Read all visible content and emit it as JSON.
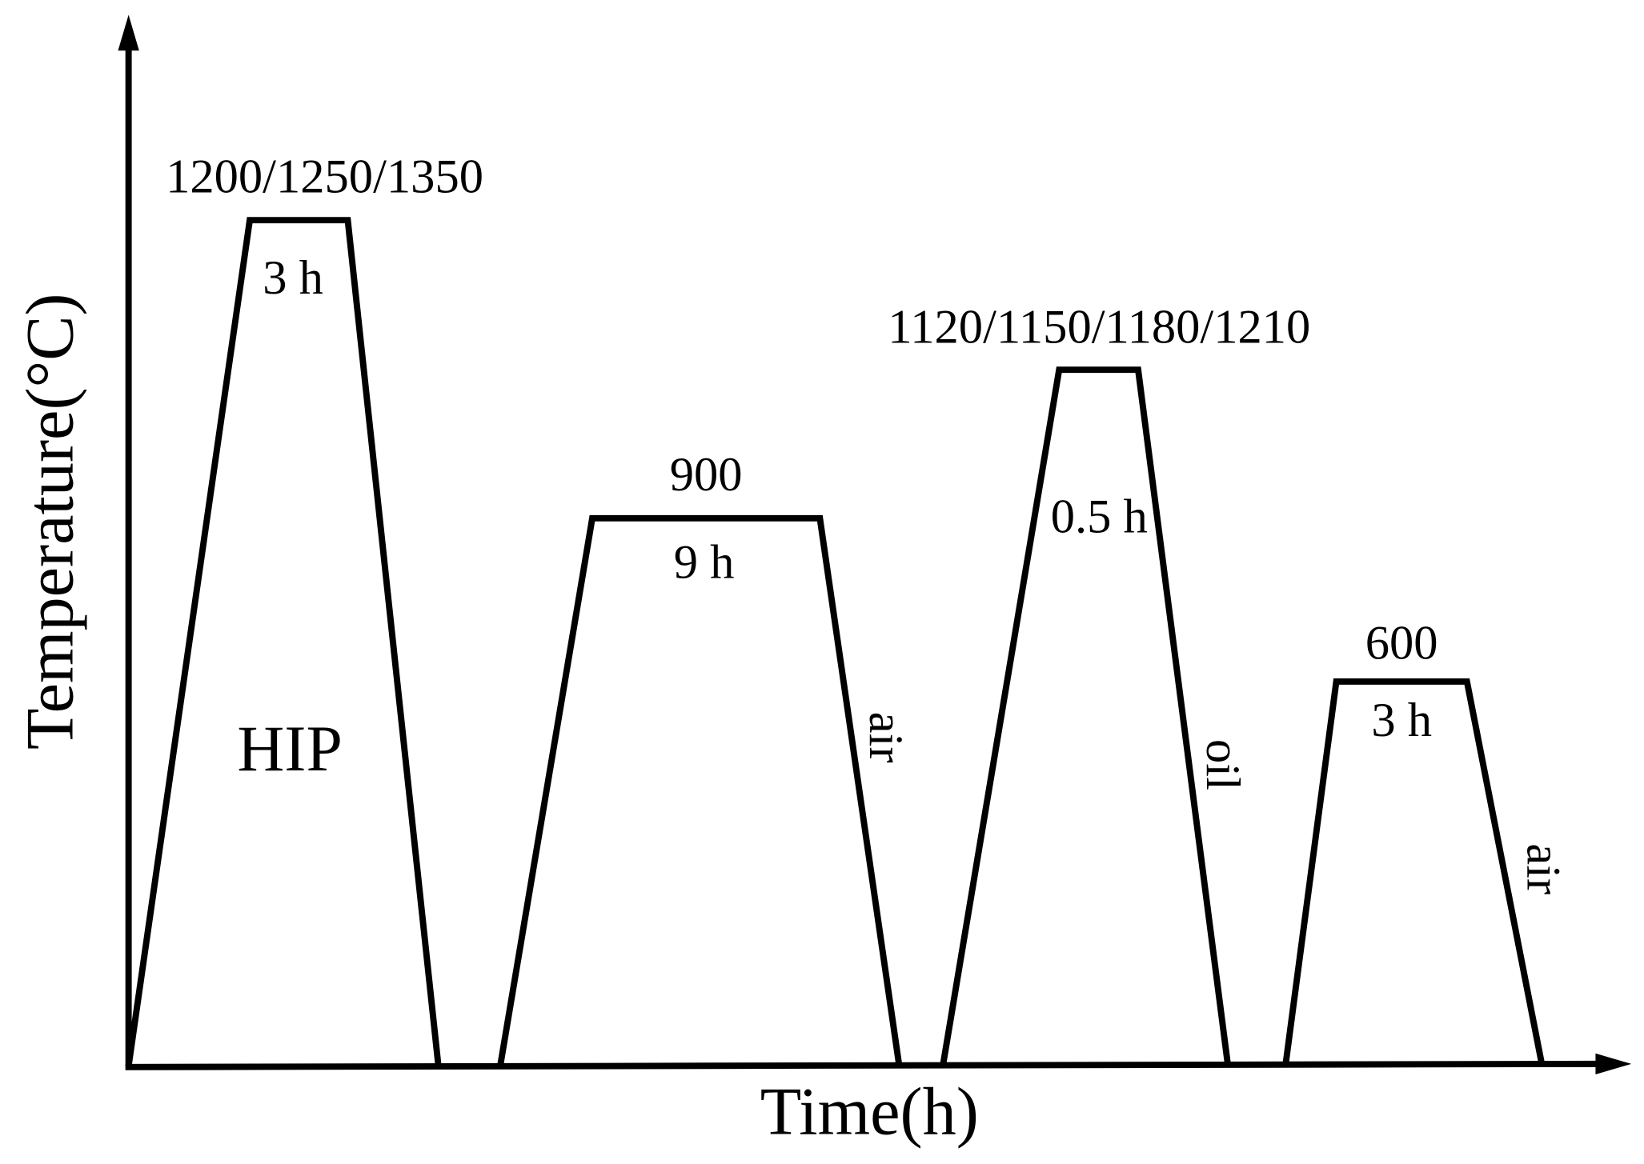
{
  "axes": {
    "y_label": "Temperature(°C)",
    "x_label": "Time(h)"
  },
  "stages": [
    {
      "temperature": "1200/1250/1350",
      "duration": "3 h",
      "label": "HIP"
    },
    {
      "temperature": "900",
      "duration": "9 h",
      "cooling": "air"
    },
    {
      "temperature": "1120/1150/1180/1210",
      "duration": "0.5 h",
      "cooling": "oil"
    },
    {
      "temperature": "600",
      "duration": "3 h",
      "cooling": "air"
    }
  ]
}
